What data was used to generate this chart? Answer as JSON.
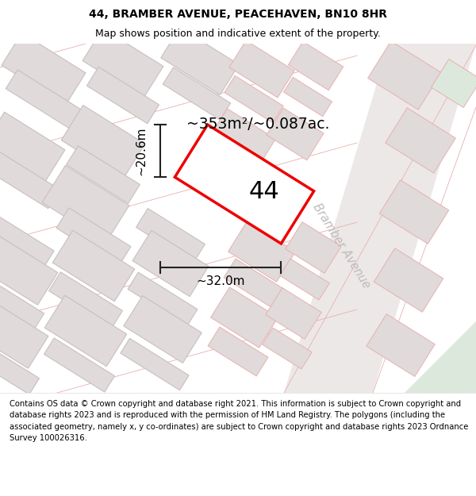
{
  "title_line1": "44, BRAMBER AVENUE, PEACEHAVEN, BN10 8HR",
  "title_line2": "Map shows position and indicative extent of the property.",
  "footer_text": "Contains OS data © Crown copyright and database right 2021. This information is subject to Crown copyright and database rights 2023 and is reproduced with the permission of HM Land Registry. The polygons (including the associated geometry, namely x, y co-ordinates) are subject to Crown copyright and database rights 2023 Ordnance Survey 100026316.",
  "area_label": "~353m²/~0.087ac.",
  "house_number": "44",
  "dim_height": "~20.6m",
  "dim_width": "~32.0m",
  "street_label": "Bramber Avenue",
  "map_bg": "#f2eeee",
  "block_color": "#e0dada",
  "block_edge": "#c8c0c0",
  "road_line_color": "#e8b0b0",
  "road_area_color": "#ede8e8",
  "right_block_color": "#e0dada",
  "right_block_edge": "#e8b0b0",
  "green_area_color": "#dce8dc",
  "plot_outline_color": "#ee0000",
  "plot_fill": "#ffffff",
  "dim_color": "#222222",
  "street_text_color": "#c0baba",
  "title_fontsize": 10,
  "subtitle_fontsize": 9,
  "footer_fontsize": 7.2,
  "tilt": -32
}
